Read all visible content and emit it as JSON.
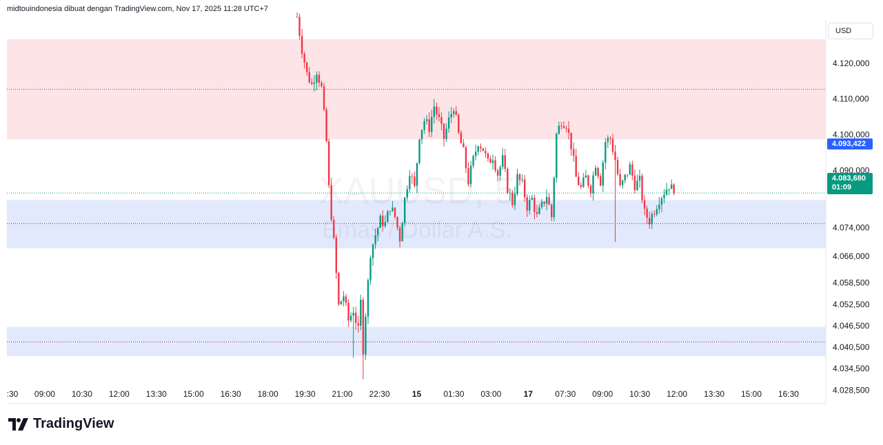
{
  "header": {
    "attribution": "midtouindonesia dibuat dengan TradingView.com, Nov 17, 2025 11:28 UTC+7"
  },
  "currency_button": "USD",
  "watermark": {
    "symbol": "XAUUSD, 5",
    "description": "Emas / Dollar A.S."
  },
  "price_labels": {
    "highlight_price": "4.093,422",
    "last_price": "4.083,680",
    "countdown": "01:09"
  },
  "brand": {
    "name": "TradingView"
  },
  "colors": {
    "up": "#089981",
    "down": "#f23645",
    "resistance_zone": "#fde4e6",
    "support_zone": "#e2e9fd",
    "resistance_line": "#9c27b0",
    "support_line": "#b71c1c",
    "blue_label": "#2962ff"
  },
  "chart_data": {
    "type": "candlestick",
    "symbol": "XAUUSD",
    "timeframe": "5",
    "y_axis": {
      "ticks": [
        "4.120,000",
        "4.110,000",
        "4.100,000",
        "4.090,000",
        "4.074,000",
        "4.066,000",
        "4.058,500",
        "4.052,500",
        "4.046,500",
        "4.040,500",
        "4.034,500",
        "4.028,500"
      ],
      "tick_values": [
        4120.0,
        4110.0,
        4100.0,
        4090.0,
        4074.0,
        4066.0,
        4058.5,
        4052.5,
        4046.5,
        4040.5,
        4034.5,
        4028.5
      ],
      "range": [
        4024.7,
        4132.3
      ]
    },
    "x_axis": {
      "ticks": [
        ":30",
        "09:00",
        "10:30",
        "12:00",
        "13:30",
        "15:00",
        "16:30",
        "18:00",
        "19:30",
        "21:00",
        "22:30",
        "15",
        "01:30",
        "03:00",
        "17",
        "07:30",
        "09:00",
        "10:30",
        "12:00",
        "13:30",
        "15:00",
        "16:30"
      ],
      "bold_ticks": [
        "15",
        "17"
      ]
    },
    "zones": [
      {
        "type": "resistance",
        "from": 4098.7,
        "to": 4126.7,
        "line": 4112.7
      },
      {
        "type": "support",
        "from": 4068.2,
        "to": 4081.7,
        "line": 4075.1
      },
      {
        "type": "support",
        "from": 4038.0,
        "to": 4046.2,
        "line": 4042.0
      }
    ],
    "current_price": 4083.68,
    "highlighted_price": 4093.422,
    "price_path": [
      [
        0,
        4133.0
      ],
      [
        2,
        4124.0
      ],
      [
        4,
        4117.0
      ],
      [
        6,
        4114.0
      ],
      [
        8,
        4118.0
      ],
      [
        10,
        4113.0
      ],
      [
        12,
        4098.0
      ],
      [
        13,
        4085.0
      ],
      [
        15,
        4070.0
      ],
      [
        17,
        4052.0
      ],
      [
        19,
        4055.0
      ],
      [
        21,
        4048.0
      ],
      [
        23,
        4051.0
      ],
      [
        25,
        4045.0
      ],
      [
        26,
        4053.0
      ],
      [
        27,
        4040.0
      ],
      [
        28,
        4050.0
      ],
      [
        30,
        4067.0
      ],
      [
        32,
        4072.0
      ],
      [
        34,
        4076.0
      ],
      [
        36,
        4075.0
      ],
      [
        38,
        4080.0
      ],
      [
        40,
        4077.0
      ],
      [
        42,
        4071.0
      ],
      [
        44,
        4082.0
      ],
      [
        46,
        4090.0
      ],
      [
        48,
        4085.0
      ],
      [
        50,
        4100.0
      ],
      [
        52,
        4104.0
      ],
      [
        54,
        4102.0
      ],
      [
        56,
        4108.0
      ],
      [
        58,
        4104.0
      ],
      [
        60,
        4099.0
      ],
      [
        62,
        4104.0
      ],
      [
        64,
        4108.0
      ],
      [
        66,
        4100.0
      ],
      [
        68,
        4095.0
      ],
      [
        70,
        4087.0
      ],
      [
        72,
        4093.0
      ],
      [
        74,
        4098.0
      ],
      [
        76,
        4096.0
      ],
      [
        78,
        4092.0
      ],
      [
        80,
        4094.0
      ],
      [
        82,
        4089.0
      ],
      [
        84,
        4093.0
      ],
      [
        86,
        4085.0
      ],
      [
        88,
        4081.0
      ],
      [
        90,
        4088.0
      ],
      [
        92,
        4086.0
      ],
      [
        94,
        4080.0
      ],
      [
        96,
        4082.0
      ],
      [
        98,
        4077.0
      ],
      [
        100,
        4080.0
      ],
      [
        102,
        4083.0
      ],
      [
        104,
        4077.0
      ],
      [
        106,
        4100.0
      ],
      [
        108,
        4104.0
      ],
      [
        110,
        4103.0
      ],
      [
        112,
        4097.0
      ],
      [
        114,
        4088.0
      ],
      [
        116,
        4085.0
      ],
      [
        118,
        4088.0
      ],
      [
        120,
        4085.0
      ],
      [
        122,
        4092.0
      ],
      [
        124,
        4087.0
      ],
      [
        126,
        4098.0
      ],
      [
        128,
        4099.0
      ],
      [
        130,
        4093.0
      ],
      [
        132,
        4085.0
      ],
      [
        134,
        4088.0
      ],
      [
        136,
        4091.0
      ],
      [
        138,
        4086.0
      ],
      [
        140,
        4087.0
      ],
      [
        142,
        4078.0
      ],
      [
        144,
        4076.0
      ],
      [
        146,
        4079.0
      ],
      [
        148,
        4082.0
      ],
      [
        150,
        4084.0
      ],
      [
        152,
        4086.0
      ],
      [
        154,
        4083.7
      ]
    ]
  }
}
